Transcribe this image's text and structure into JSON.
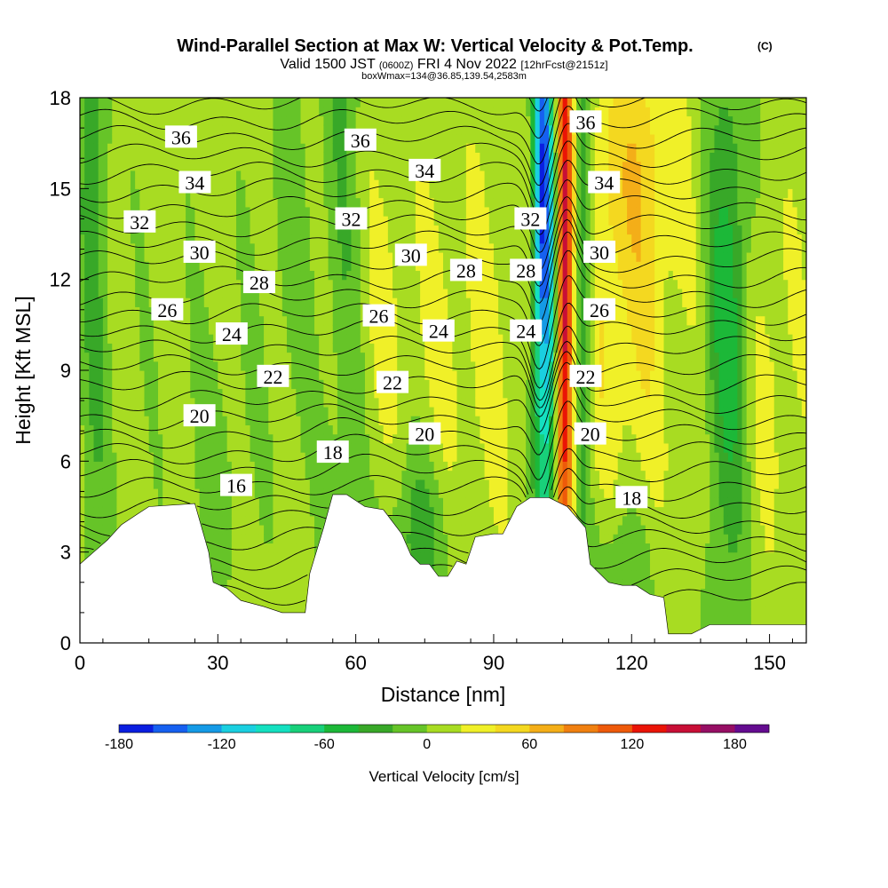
{
  "title": {
    "main": "Wind-Parallel Section at Max W: Vertical Velocity & Pot.Temp.",
    "copyright": "(C)",
    "valid_prefix": "Valid 1500 JST",
    "valid_utc": "(0600Z)",
    "valid_date": "FRI 4 Nov 2022",
    "forecast": "[12hrFcst@2151z]",
    "box": "boxWmax=134@36.85,139.54,2583m"
  },
  "chart_data": {
    "type": "contour",
    "xlabel": "Distance [nm]",
    "ylabel": "Height [Kft MSL]",
    "xlim": [
      0,
      158
    ],
    "ylim": [
      0,
      18
    ],
    "x_ticks": [
      0,
      30,
      60,
      90,
      120,
      150
    ],
    "y_ticks": [
      0,
      3,
      6,
      9,
      12,
      15,
      18
    ],
    "terrain": [
      [
        0,
        2.6
      ],
      [
        3,
        3.0
      ],
      [
        6,
        3.4
      ],
      [
        9,
        3.9
      ],
      [
        13,
        4.3
      ],
      [
        15,
        4.5
      ],
      [
        25,
        4.6
      ],
      [
        28,
        3.0
      ],
      [
        29,
        2.0
      ],
      [
        32,
        1.8
      ],
      [
        35,
        1.4
      ],
      [
        40,
        1.2
      ],
      [
        44,
        1.0
      ],
      [
        49,
        1.0
      ],
      [
        50,
        2.3
      ],
      [
        53,
        3.8
      ],
      [
        55,
        4.9
      ],
      [
        58,
        4.9
      ],
      [
        62,
        4.5
      ],
      [
        66,
        4.4
      ],
      [
        70,
        3.6
      ],
      [
        72,
        2.9
      ],
      [
        74,
        2.6
      ],
      [
        76,
        2.6
      ],
      [
        78,
        2.2
      ],
      [
        80,
        2.2
      ],
      [
        82,
        2.7
      ],
      [
        84,
        2.6
      ],
      [
        86,
        3.5
      ],
      [
        90,
        3.6
      ],
      [
        92,
        3.6
      ],
      [
        95,
        4.5
      ],
      [
        98,
        4.8
      ],
      [
        102,
        4.8
      ],
      [
        106,
        4.5
      ],
      [
        110,
        3.8
      ],
      [
        111,
        2.6
      ],
      [
        115,
        2.0
      ],
      [
        118,
        1.9
      ],
      [
        121,
        1.9
      ],
      [
        124,
        1.6
      ],
      [
        127,
        1.5
      ],
      [
        128,
        0.3
      ],
      [
        133,
        0.3
      ],
      [
        137,
        0.6
      ],
      [
        150,
        0.6
      ],
      [
        158,
        0.6
      ]
    ],
    "colorbar": {
      "title": "Vertical Velocity [cm/s]",
      "min": -180,
      "max": 200,
      "step": 20,
      "tick_values": [
        -180,
        -120,
        -60,
        0,
        60,
        120,
        180
      ],
      "tick_labels": [
        "-180",
        "-120",
        "-60",
        "0",
        "60",
        "120",
        "180"
      ],
      "colors": [
        "#0a1ee0",
        "#1660f0",
        "#159ae6",
        "#1acfe0",
        "#14e0c0",
        "#18d07a",
        "#1cb838",
        "#38a828",
        "#66c428",
        "#a8dc22",
        "#f0f028",
        "#f4d820",
        "#f4ae18",
        "#f08010",
        "#ee5a0a",
        "#ea1406",
        "#c80e36",
        "#960e64",
        "#640c90"
      ]
    },
    "theta_labels": [
      {
        "text": "36",
        "x": 22,
        "y": 16.7
      },
      {
        "text": "34",
        "x": 25,
        "y": 15.2
      },
      {
        "text": "32",
        "x": 13,
        "y": 13.9
      },
      {
        "text": "30",
        "x": 26,
        "y": 12.9
      },
      {
        "text": "28",
        "x": 39,
        "y": 11.9
      },
      {
        "text": "26",
        "x": 19,
        "y": 11.0
      },
      {
        "text": "24",
        "x": 33,
        "y": 10.2
      },
      {
        "text": "22",
        "x": 42,
        "y": 8.8
      },
      {
        "text": "20",
        "x": 26,
        "y": 7.5
      },
      {
        "text": "16",
        "x": 34,
        "y": 5.2
      },
      {
        "text": "36",
        "x": 61,
        "y": 16.6
      },
      {
        "text": "34",
        "x": 75,
        "y": 15.6
      },
      {
        "text": "32",
        "x": 59,
        "y": 14.0
      },
      {
        "text": "30",
        "x": 72,
        "y": 12.8
      },
      {
        "text": "28",
        "x": 84,
        "y": 12.3
      },
      {
        "text": "26",
        "x": 65,
        "y": 10.8
      },
      {
        "text": "24",
        "x": 78,
        "y": 10.3
      },
      {
        "text": "22",
        "x": 68,
        "y": 8.6
      },
      {
        "text": "20",
        "x": 75,
        "y": 6.9
      },
      {
        "text": "18",
        "x": 55,
        "y": 6.3
      },
      {
        "text": "36",
        "x": 110,
        "y": 17.2
      },
      {
        "text": "34",
        "x": 114,
        "y": 15.2
      },
      {
        "text": "32",
        "x": 98,
        "y": 14.0
      },
      {
        "text": "30",
        "x": 113,
        "y": 12.9
      },
      {
        "text": "28",
        "x": 97,
        "y": 12.3
      },
      {
        "text": "26",
        "x": 113,
        "y": 11.0
      },
      {
        "text": "24",
        "x": 97,
        "y": 10.3
      },
      {
        "text": "22",
        "x": 110,
        "y": 8.8
      },
      {
        "text": "20",
        "x": 111,
        "y": 6.9
      },
      {
        "text": "18",
        "x": 120,
        "y": 4.8
      }
    ]
  }
}
